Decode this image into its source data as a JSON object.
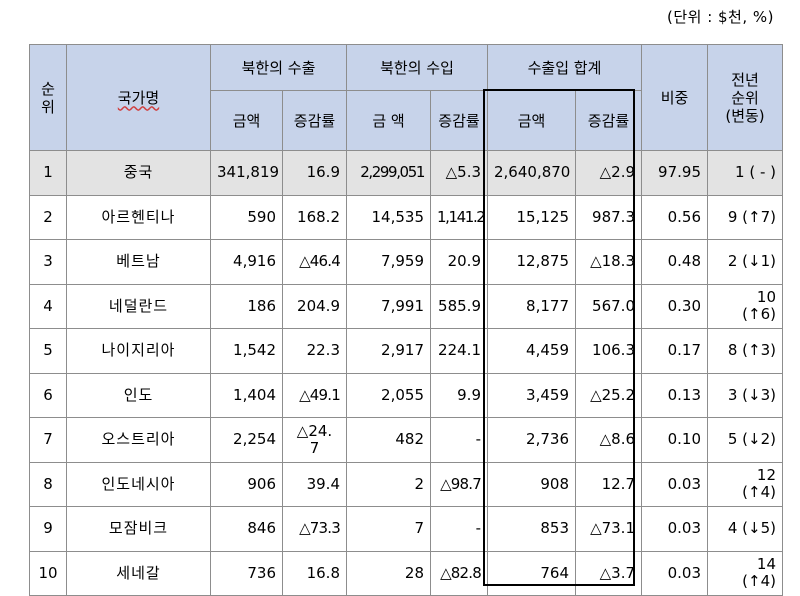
{
  "unit_note": "(단위 : $천, %)",
  "headers": {
    "rank": "순위",
    "country": "국가명",
    "export": "북한의 수출",
    "import": "북한의 수입",
    "total": "수출입 합계",
    "share": "비중",
    "prev_rank_line1": "전년",
    "prev_rank_line2": "순위",
    "prev_rank_line3": "(변동)",
    "amount": "금액",
    "amount_spaced": "금 액",
    "growth": "증감률"
  },
  "rows": [
    {
      "rank": "1",
      "country": "중국",
      "exp_amt": "341,819",
      "exp_rate": "16.9",
      "imp_amt": "2,299,051",
      "imp_rate": "△5.3",
      "tot_amt": "2,640,870",
      "tot_rate": "△2.9",
      "share": "97.95",
      "prev1": "1 ( - )",
      "prev2": ""
    },
    {
      "rank": "2",
      "country": "아르헨티나",
      "exp_amt": "590",
      "exp_rate": "168.2",
      "imp_amt": "14,535",
      "imp_rate": "1,141.2",
      "tot_amt": "15,125",
      "tot_rate": "987.3",
      "share": "0.56",
      "prev1": "9 (↑7)",
      "prev2": ""
    },
    {
      "rank": "3",
      "country": "베트남",
      "exp_amt": "4,916",
      "exp_rate": "△46.4",
      "imp_amt": "7,959",
      "imp_rate": "20.9",
      "tot_amt": "12,875",
      "tot_rate": "△18.3",
      "share": "0.48",
      "prev1": "2 (↓1)",
      "prev2": ""
    },
    {
      "rank": "4",
      "country": "네덜란드",
      "exp_amt": "186",
      "exp_rate": "204.9",
      "imp_amt": "7,991",
      "imp_rate": "585.9",
      "tot_amt": "8,177",
      "tot_rate": "567.0",
      "share": "0.30",
      "prev1": "10",
      "prev2": "(↑6)"
    },
    {
      "rank": "5",
      "country": "나이지리아",
      "exp_amt": "1,542",
      "exp_rate": "22.3",
      "imp_amt": "2,917",
      "imp_rate": "224.1",
      "tot_amt": "4,459",
      "tot_rate": "106.3",
      "share": "0.17",
      "prev1": "8 (↑3)",
      "prev2": ""
    },
    {
      "rank": "6",
      "country": "인도",
      "exp_amt": "1,404",
      "exp_rate": "△49.1",
      "imp_amt": "2,055",
      "imp_rate": "9.9",
      "tot_amt": "3,459",
      "tot_rate": "△25.2",
      "share": "0.13",
      "prev1": "3 (↓3)",
      "prev2": ""
    },
    {
      "rank": "7",
      "country": "오스트리아",
      "exp_amt": "2,254",
      "exp_rate": "△24.",
      "exp_rate2": "7",
      "imp_amt": "482",
      "imp_rate": "-",
      "tot_amt": "2,736",
      "tot_rate": "△8.6",
      "share": "0.10",
      "prev1": "5 (↓2)",
      "prev2": ""
    },
    {
      "rank": "8",
      "country": "인도네시아",
      "exp_amt": "906",
      "exp_rate": "39.4",
      "imp_amt": "2",
      "imp_rate": "△98.7",
      "tot_amt": "908",
      "tot_rate": "12.7",
      "share": "0.03",
      "prev1": "12",
      "prev2": "(↑4)"
    },
    {
      "rank": "9",
      "country": "모잠비크",
      "exp_amt": "846",
      "exp_rate": "△73.3",
      "imp_amt": "7",
      "imp_rate": "-",
      "tot_amt": "853",
      "tot_rate": "△73.1",
      "share": "0.03",
      "prev1": "4 (↓5)",
      "prev2": ""
    },
    {
      "rank": "10",
      "country": "세네갈",
      "exp_amt": "736",
      "exp_rate": "16.8",
      "imp_amt": "28",
      "imp_rate": "△82.8",
      "tot_amt": "764",
      "tot_rate": "△3.7",
      "share": "0.03",
      "prev1": "14",
      "prev2": "(↑4)"
    }
  ]
}
